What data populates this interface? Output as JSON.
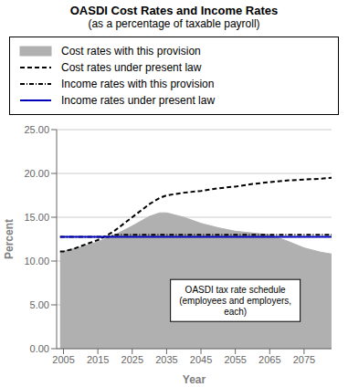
{
  "chart_data": {
    "type": "line",
    "title": "OASDI Cost Rates and Income Rates",
    "subtitle": "(as a percentage of taxable payroll)",
    "xlabel": "Year",
    "ylabel": "Percent",
    "x": [
      2004,
      2005,
      2008,
      2010,
      2015,
      2018,
      2020,
      2025,
      2030,
      2033,
      2035,
      2040,
      2045,
      2050,
      2055,
      2060,
      2065,
      2070,
      2075,
      2080,
      2083
    ],
    "xlim": [
      2003,
      2083
    ],
    "xticks": [
      2005,
      2015,
      2025,
      2035,
      2045,
      2055,
      2065,
      2075
    ],
    "ylim": [
      0.0,
      25.0
    ],
    "yticks": [
      {
        "value": 0.0,
        "label": "0.00"
      },
      {
        "value": 5.0,
        "label": "5.00"
      },
      {
        "value": 10.0,
        "label": "10.00"
      },
      {
        "value": 15.0,
        "label": "15.00"
      },
      {
        "value": 20.0,
        "label": "20.00"
      },
      {
        "value": 25.0,
        "label": "25.00"
      }
    ],
    "grid": "y",
    "legend": "top",
    "series": [
      {
        "name": "Cost rates with this provision",
        "type": "area",
        "color": "#b0b0b0",
        "values": [
          11.1,
          11.1,
          11.4,
          11.6,
          12.2,
          12.7,
          13.0,
          14.0,
          15.1,
          15.5,
          15.5,
          15.0,
          14.3,
          13.8,
          13.4,
          13.2,
          13.0,
          12.3,
          11.5,
          11.0,
          10.8
        ]
      },
      {
        "name": "Cost rates under present law",
        "type": "line",
        "line_style": "dashed",
        "color": "#000000",
        "values": [
          11.1,
          11.1,
          11.4,
          11.7,
          12.4,
          13.0,
          13.5,
          15.0,
          16.5,
          17.2,
          17.5,
          17.8,
          18.0,
          18.3,
          18.5,
          18.8,
          19.0,
          19.2,
          19.3,
          19.4,
          19.5
        ]
      },
      {
        "name": "Income rates with this provision",
        "type": "line",
        "line_style": "dashdot",
        "color": "#000000",
        "values": [
          12.75,
          12.75,
          12.75,
          12.75,
          12.75,
          12.75,
          13.0,
          13.0,
          13.0,
          13.0,
          13.0,
          13.0,
          13.0,
          13.0,
          13.0,
          13.0,
          13.0,
          13.0,
          13.0,
          13.0,
          13.0
        ]
      },
      {
        "name": "Income rates under present law",
        "type": "line",
        "line_style": "solid",
        "color": "#0000bb",
        "values": [
          12.75,
          12.75,
          12.75,
          12.75,
          12.75,
          12.75,
          12.75,
          12.75,
          12.75,
          12.75,
          12.75,
          12.75,
          12.75,
          12.75,
          12.75,
          12.75,
          12.75,
          12.75,
          12.75,
          12.75,
          12.75
        ]
      }
    ],
    "annotations": [
      {
        "text": "OASDI tax rate schedule\n(employees and employers,\neach)",
        "x": 2055,
        "y": 5.5
      }
    ]
  }
}
